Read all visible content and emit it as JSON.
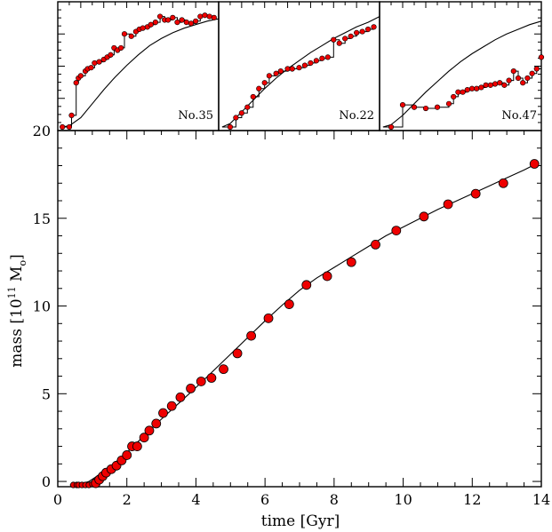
{
  "chart_data": [
    {
      "type": "line",
      "xlabel": "time [Gyr]",
      "ylabel_prefix": "mass [10",
      "ylabel_exp": "11",
      "ylabel_unit": " M",
      "ylabel_sub": "o",
      "ylabel_suffix": "]",
      "xlim": [
        0,
        14
      ],
      "ylim": [
        -0.3,
        20
      ],
      "xticks": [
        0,
        2,
        4,
        6,
        8,
        10,
        12,
        14
      ],
      "yticks": [
        0,
        5,
        10,
        15,
        20
      ],
      "xtick_labels": [
        "0",
        "2",
        "4",
        "6",
        "8",
        "10",
        "12",
        "14"
      ],
      "ytick_labels": [
        "0",
        "5",
        "10",
        "15",
        "20"
      ],
      "series": [
        {
          "kind": "curve",
          "x": [
            0.35,
            0.5,
            0.7,
            0.9,
            1.1,
            1.3,
            1.5,
            1.8,
            2.0,
            2.5,
            3.0,
            3.5,
            4.0,
            4.5,
            5.0,
            5.5,
            6.0,
            6.5,
            7.0,
            7.5,
            8.0,
            8.5,
            9.0,
            9.5,
            10.0,
            10.5,
            11.0,
            11.5,
            12.0,
            12.5,
            13.0,
            13.5,
            13.8
          ],
          "y": [
            -0.2,
            -0.18,
            -0.12,
            0.0,
            0.25,
            0.55,
            0.85,
            1.3,
            1.65,
            2.6,
            3.55,
            4.45,
            5.35,
            6.3,
            7.25,
            8.2,
            9.15,
            10.05,
            10.9,
            11.6,
            12.2,
            12.8,
            13.4,
            14.0,
            14.5,
            15.0,
            15.5,
            15.95,
            16.4,
            16.85,
            17.3,
            17.75,
            18.05
          ]
        },
        {
          "kind": "points",
          "x": [
            0.45,
            0.55,
            0.6,
            0.7,
            0.8,
            0.9,
            1.0,
            1.1,
            1.2,
            1.3,
            1.4,
            1.55,
            1.7,
            1.85,
            2.0,
            2.15,
            2.3,
            2.5,
            2.65,
            2.85,
            3.05,
            3.3,
            3.55,
            3.85,
            4.15,
            4.45,
            4.8,
            5.2,
            5.6,
            6.1,
            6.7,
            7.2,
            7.8,
            8.5,
            9.2,
            9.8,
            10.6,
            11.3,
            12.1,
            12.9,
            13.8
          ],
          "y": [
            -0.2,
            -0.2,
            -0.2,
            -0.2,
            -0.2,
            -0.2,
            -0.15,
            -0.1,
            0.1,
            0.3,
            0.5,
            0.7,
            0.9,
            1.2,
            1.5,
            2.0,
            2.0,
            2.5,
            2.9,
            3.3,
            3.9,
            4.3,
            4.8,
            5.3,
            5.7,
            5.9,
            6.4,
            7.3,
            8.3,
            9.3,
            10.1,
            11.2,
            11.7,
            12.5,
            13.5,
            14.3,
            15.1,
            15.8,
            16.4,
            17.0,
            18.1
          ]
        }
      ]
    },
    {
      "type": "line",
      "label": "No.35",
      "xlim": [
        0,
        14
      ],
      "ylim": [
        0,
        1
      ],
      "curve": {
        "x": [
          0.3,
          1,
          2,
          3,
          4,
          5,
          6,
          7,
          8,
          9,
          10,
          11,
          12,
          13,
          14
        ],
        "y": [
          0.0,
          0.01,
          0.08,
          0.2,
          0.32,
          0.43,
          0.53,
          0.62,
          0.7,
          0.76,
          0.81,
          0.85,
          0.88,
          0.91,
          0.93
        ]
      },
      "points": {
        "x": [
          0.4,
          1.0,
          1.2,
          1.6,
          1.8,
          2.0,
          2.4,
          2.6,
          2.9,
          3.2,
          3.6,
          4.0,
          4.3,
          4.6,
          4.9,
          5.2,
          5.5,
          5.8,
          6.4,
          6.8,
          7.1,
          7.4,
          7.8,
          8.1,
          8.5,
          8.9,
          9.3,
          9.6,
          10.0,
          10.4,
          10.8,
          11.2,
          11.6,
          12.0,
          12.4,
          12.8,
          13.2,
          13.6
        ],
        "y": [
          0.0,
          0.0,
          0.1,
          0.38,
          0.42,
          0.44,
          0.48,
          0.5,
          0.51,
          0.55,
          0.56,
          0.58,
          0.6,
          0.62,
          0.68,
          0.66,
          0.68,
          0.8,
          0.78,
          0.82,
          0.84,
          0.85,
          0.86,
          0.88,
          0.9,
          0.95,
          0.92,
          0.92,
          0.94,
          0.9,
          0.92,
          0.9,
          0.89,
          0.91,
          0.95,
          0.96,
          0.95,
          0.94
        ]
      }
    },
    {
      "type": "line",
      "label": "No.22",
      "xlim": [
        0,
        14
      ],
      "ylim": [
        0,
        1
      ],
      "curve": {
        "x": [
          0.3,
          1,
          2,
          3,
          4,
          5,
          6,
          7,
          8,
          9,
          10,
          11,
          12,
          13,
          14
        ],
        "y": [
          0.0,
          0.03,
          0.13,
          0.23,
          0.33,
          0.42,
          0.5,
          0.57,
          0.64,
          0.7,
          0.76,
          0.81,
          0.86,
          0.9,
          0.95
        ]
      },
      "points": {
        "x": [
          1.0,
          1.5,
          2.0,
          2.5,
          3.0,
          3.5,
          4.0,
          4.4,
          5.0,
          5.4,
          6.0,
          6.4,
          7.0,
          7.5,
          8.0,
          8.5,
          9.0,
          9.5,
          10.0,
          10.5,
          11.0,
          11.5,
          12.0,
          12.5,
          13.0,
          13.5
        ],
        "y": [
          0.0,
          0.08,
          0.12,
          0.17,
          0.26,
          0.33,
          0.38,
          0.44,
          0.46,
          0.48,
          0.5,
          0.5,
          0.51,
          0.53,
          0.55,
          0.57,
          0.59,
          0.6,
          0.75,
          0.72,
          0.76,
          0.78,
          0.81,
          0.82,
          0.84,
          0.86
        ]
      }
    },
    {
      "type": "line",
      "label": "No.47",
      "xlim": [
        0,
        14
      ],
      "ylim": [
        0,
        1
      ],
      "curve": {
        "x": [
          0.3,
          1,
          2,
          3,
          4,
          5,
          6,
          7,
          8,
          9,
          10,
          11,
          12,
          13,
          14
        ],
        "y": [
          0.0,
          0.02,
          0.1,
          0.2,
          0.3,
          0.39,
          0.48,
          0.56,
          0.63,
          0.69,
          0.75,
          0.8,
          0.84,
          0.88,
          0.91
        ]
      },
      "points": {
        "x": [
          1.0,
          2.0,
          3.0,
          4.0,
          5.0,
          6.0,
          6.4,
          6.8,
          7.2,
          7.6,
          8.0,
          8.4,
          8.8,
          9.2,
          9.6,
          10.0,
          10.4,
          10.8,
          11.2,
          11.6,
          12.0,
          12.4,
          12.8,
          13.2,
          13.6,
          14.0
        ],
        "y": [
          0.0,
          0.19,
          0.17,
          0.16,
          0.17,
          0.2,
          0.26,
          0.3,
          0.3,
          0.32,
          0.33,
          0.33,
          0.34,
          0.36,
          0.36,
          0.37,
          0.38,
          0.36,
          0.4,
          0.48,
          0.42,
          0.38,
          0.42,
          0.46,
          0.5,
          0.6
        ]
      }
    }
  ]
}
